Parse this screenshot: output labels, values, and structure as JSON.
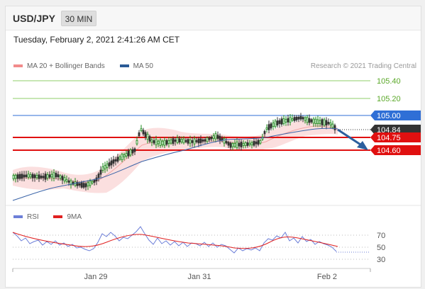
{
  "header": {
    "symbol": "USD/JPY",
    "timeframe": "30 MIN"
  },
  "datetime": "Tuesday, February 2, 2021 2:41:26 AM CET",
  "price_legend": [
    {
      "label": "MA 20 + Bollinger Bands",
      "color": "#f28b8b"
    },
    {
      "label": "MA 50",
      "color": "#2a5a96"
    }
  ],
  "copyright": "Research © 2021 Trading Central",
  "rsi_legend": [
    {
      "label": "RSI",
      "color": "#6d7fd8"
    },
    {
      "label": "9MA",
      "color": "#e02020"
    }
  ],
  "levels": [
    {
      "value": "105.40",
      "type": "target",
      "color": "#5aa828"
    },
    {
      "value": "105.20",
      "type": "target",
      "color": "#5aa828"
    },
    {
      "value": "105.00",
      "type": "pivot",
      "color": "#2f6fd6"
    },
    {
      "value": "104.84",
      "type": "last",
      "color": "#333333"
    },
    {
      "value": "104.75",
      "type": "support",
      "color": "#e01010"
    },
    {
      "value": "104.60",
      "type": "support",
      "color": "#e01010"
    }
  ],
  "rsi_levels": [
    "70",
    "50",
    "30"
  ],
  "x_labels": [
    "Jan 29",
    "Jan 31",
    "Feb 2"
  ],
  "colors": {
    "up_candle": "#1a8a1a",
    "down_candle": "#333333",
    "ma50": "#3a64a8",
    "bands": "#f7c9c9",
    "arrow": "#2c5f9e"
  }
}
